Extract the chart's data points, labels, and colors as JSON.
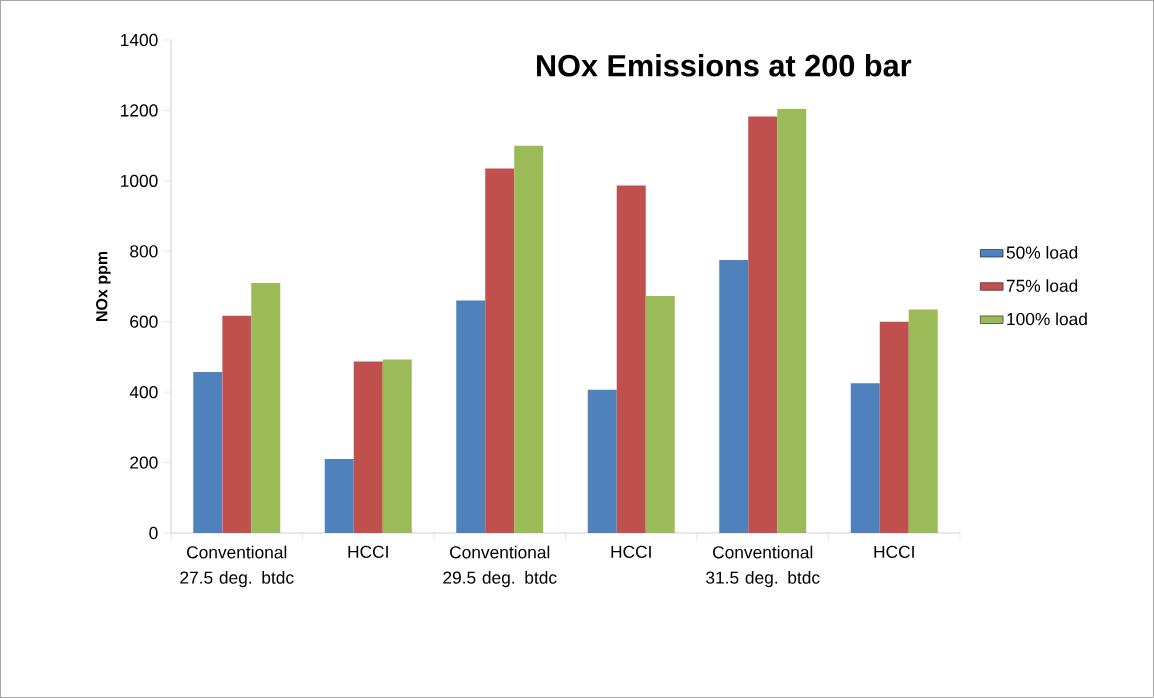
{
  "chart_data": {
    "type": "bar",
    "title": "NOx Emissions at 200 bar",
    "ylabel": "NOx ppm",
    "categories": [
      "Conventional 27.5 deg. btdc",
      "HCCI",
      "Conventional 29.5 deg. btdc",
      "HCCI",
      "Conventional 31.5 deg. btdc",
      "HCCI"
    ],
    "series": [
      {
        "name": "50% load",
        "color": "#4f81bd",
        "values": [
          457,
          210,
          660,
          407,
          775,
          425
        ]
      },
      {
        "name": "75% load",
        "color": "#c0504d",
        "values": [
          617,
          487,
          1035,
          987,
          1183,
          600
        ]
      },
      {
        "name": "100% load",
        "color": "#9bbb59",
        "values": [
          710,
          493,
          1100,
          673,
          1205,
          635
        ]
      }
    ],
    "ylim": [
      0,
      1400
    ],
    "yticks": [
      0,
      200,
      400,
      600,
      800,
      1000,
      1200,
      1400
    ],
    "grid": false,
    "legend": "right"
  }
}
